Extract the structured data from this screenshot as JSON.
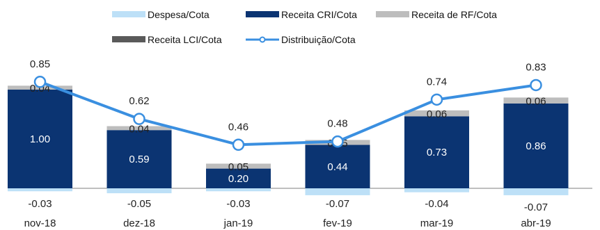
{
  "chart_data": {
    "type": "bar",
    "categories": [
      "nov-18",
      "dez-18",
      "jan-19",
      "fev-19",
      "mar-19",
      "abr-19"
    ],
    "series": [
      {
        "name": "Despesa/Cota",
        "kind": "bar",
        "values": [
          -0.03,
          -0.05,
          -0.03,
          -0.07,
          -0.04,
          -0.07
        ]
      },
      {
        "name": "Receita CRI/Cota",
        "kind": "bar",
        "values": [
          1.0,
          0.59,
          0.2,
          0.44,
          0.73,
          0.86
        ]
      },
      {
        "name": "Receita de RF/Cota",
        "kind": "bar",
        "values": [
          0.04,
          0.04,
          0.05,
          0.05,
          0.06,
          0.06
        ]
      },
      {
        "name": "Receita LCI/Cota",
        "kind": "bar",
        "values": [
          0,
          0,
          0,
          0,
          0,
          0
        ]
      },
      {
        "name": "Distribuição/Cota",
        "kind": "line",
        "values": [
          0.85,
          0.62,
          0.46,
          0.48,
          0.74,
          0.83
        ]
      }
    ],
    "labels": {
      "despesa": [
        "-0.03",
        "-0.05",
        "-0.03",
        "-0.07",
        "-0.04",
        "-0.07"
      ],
      "cri": [
        "1.00",
        "0.59",
        "0.20",
        "0.44",
        "0.73",
        "0.86"
      ],
      "rf": [
        "0.04",
        "0.04",
        "0.05",
        "0.05",
        "0.06",
        "0.06"
      ],
      "dist": [
        "0.85",
        "0.62",
        "0.46",
        "0.48",
        "0.74",
        "0.83"
      ]
    },
    "colors": {
      "despesa": "#bde0f7",
      "cri": "#0b3472",
      "rf": "#bdbdbd",
      "lci": "#5a5a5a",
      "dist": "#3a8fe0"
    },
    "legend_position": "top",
    "grid": false
  }
}
